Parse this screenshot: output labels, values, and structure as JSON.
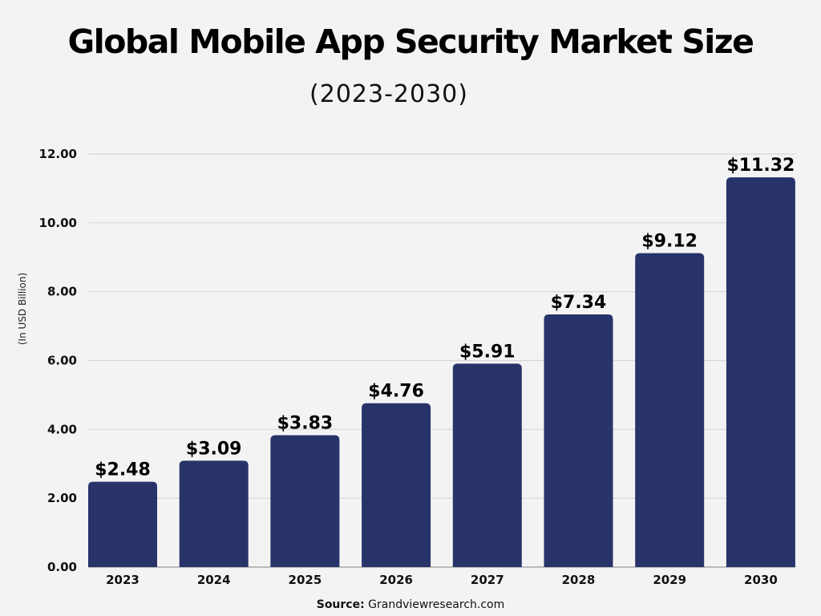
{
  "chart_data": {
    "type": "bar",
    "title": "Global Mobile App Security Market Size",
    "subtitle": "(2023-2030)",
    "ylabel": "(In USD Billion)",
    "xlabel": "",
    "categories": [
      "2023",
      "2024",
      "2025",
      "2026",
      "2027",
      "2028",
      "2029",
      "2030"
    ],
    "values": [
      2.48,
      3.09,
      3.83,
      4.76,
      5.91,
      7.34,
      9.12,
      11.32
    ],
    "data_labels": [
      "$2.48",
      "$3.09",
      "$3.83",
      "$4.76",
      "$5.91",
      "$7.34",
      "$9.12",
      "$11.32"
    ],
    "ylim": [
      0,
      12
    ],
    "yticks": [
      "0.00",
      "2.00",
      "4.00",
      "6.00",
      "8.00",
      "10.00",
      "12.00"
    ],
    "grid": true,
    "bar_color": "#283369"
  },
  "source": {
    "label": "Source:",
    "text": "Grandviewresearch.com"
  }
}
